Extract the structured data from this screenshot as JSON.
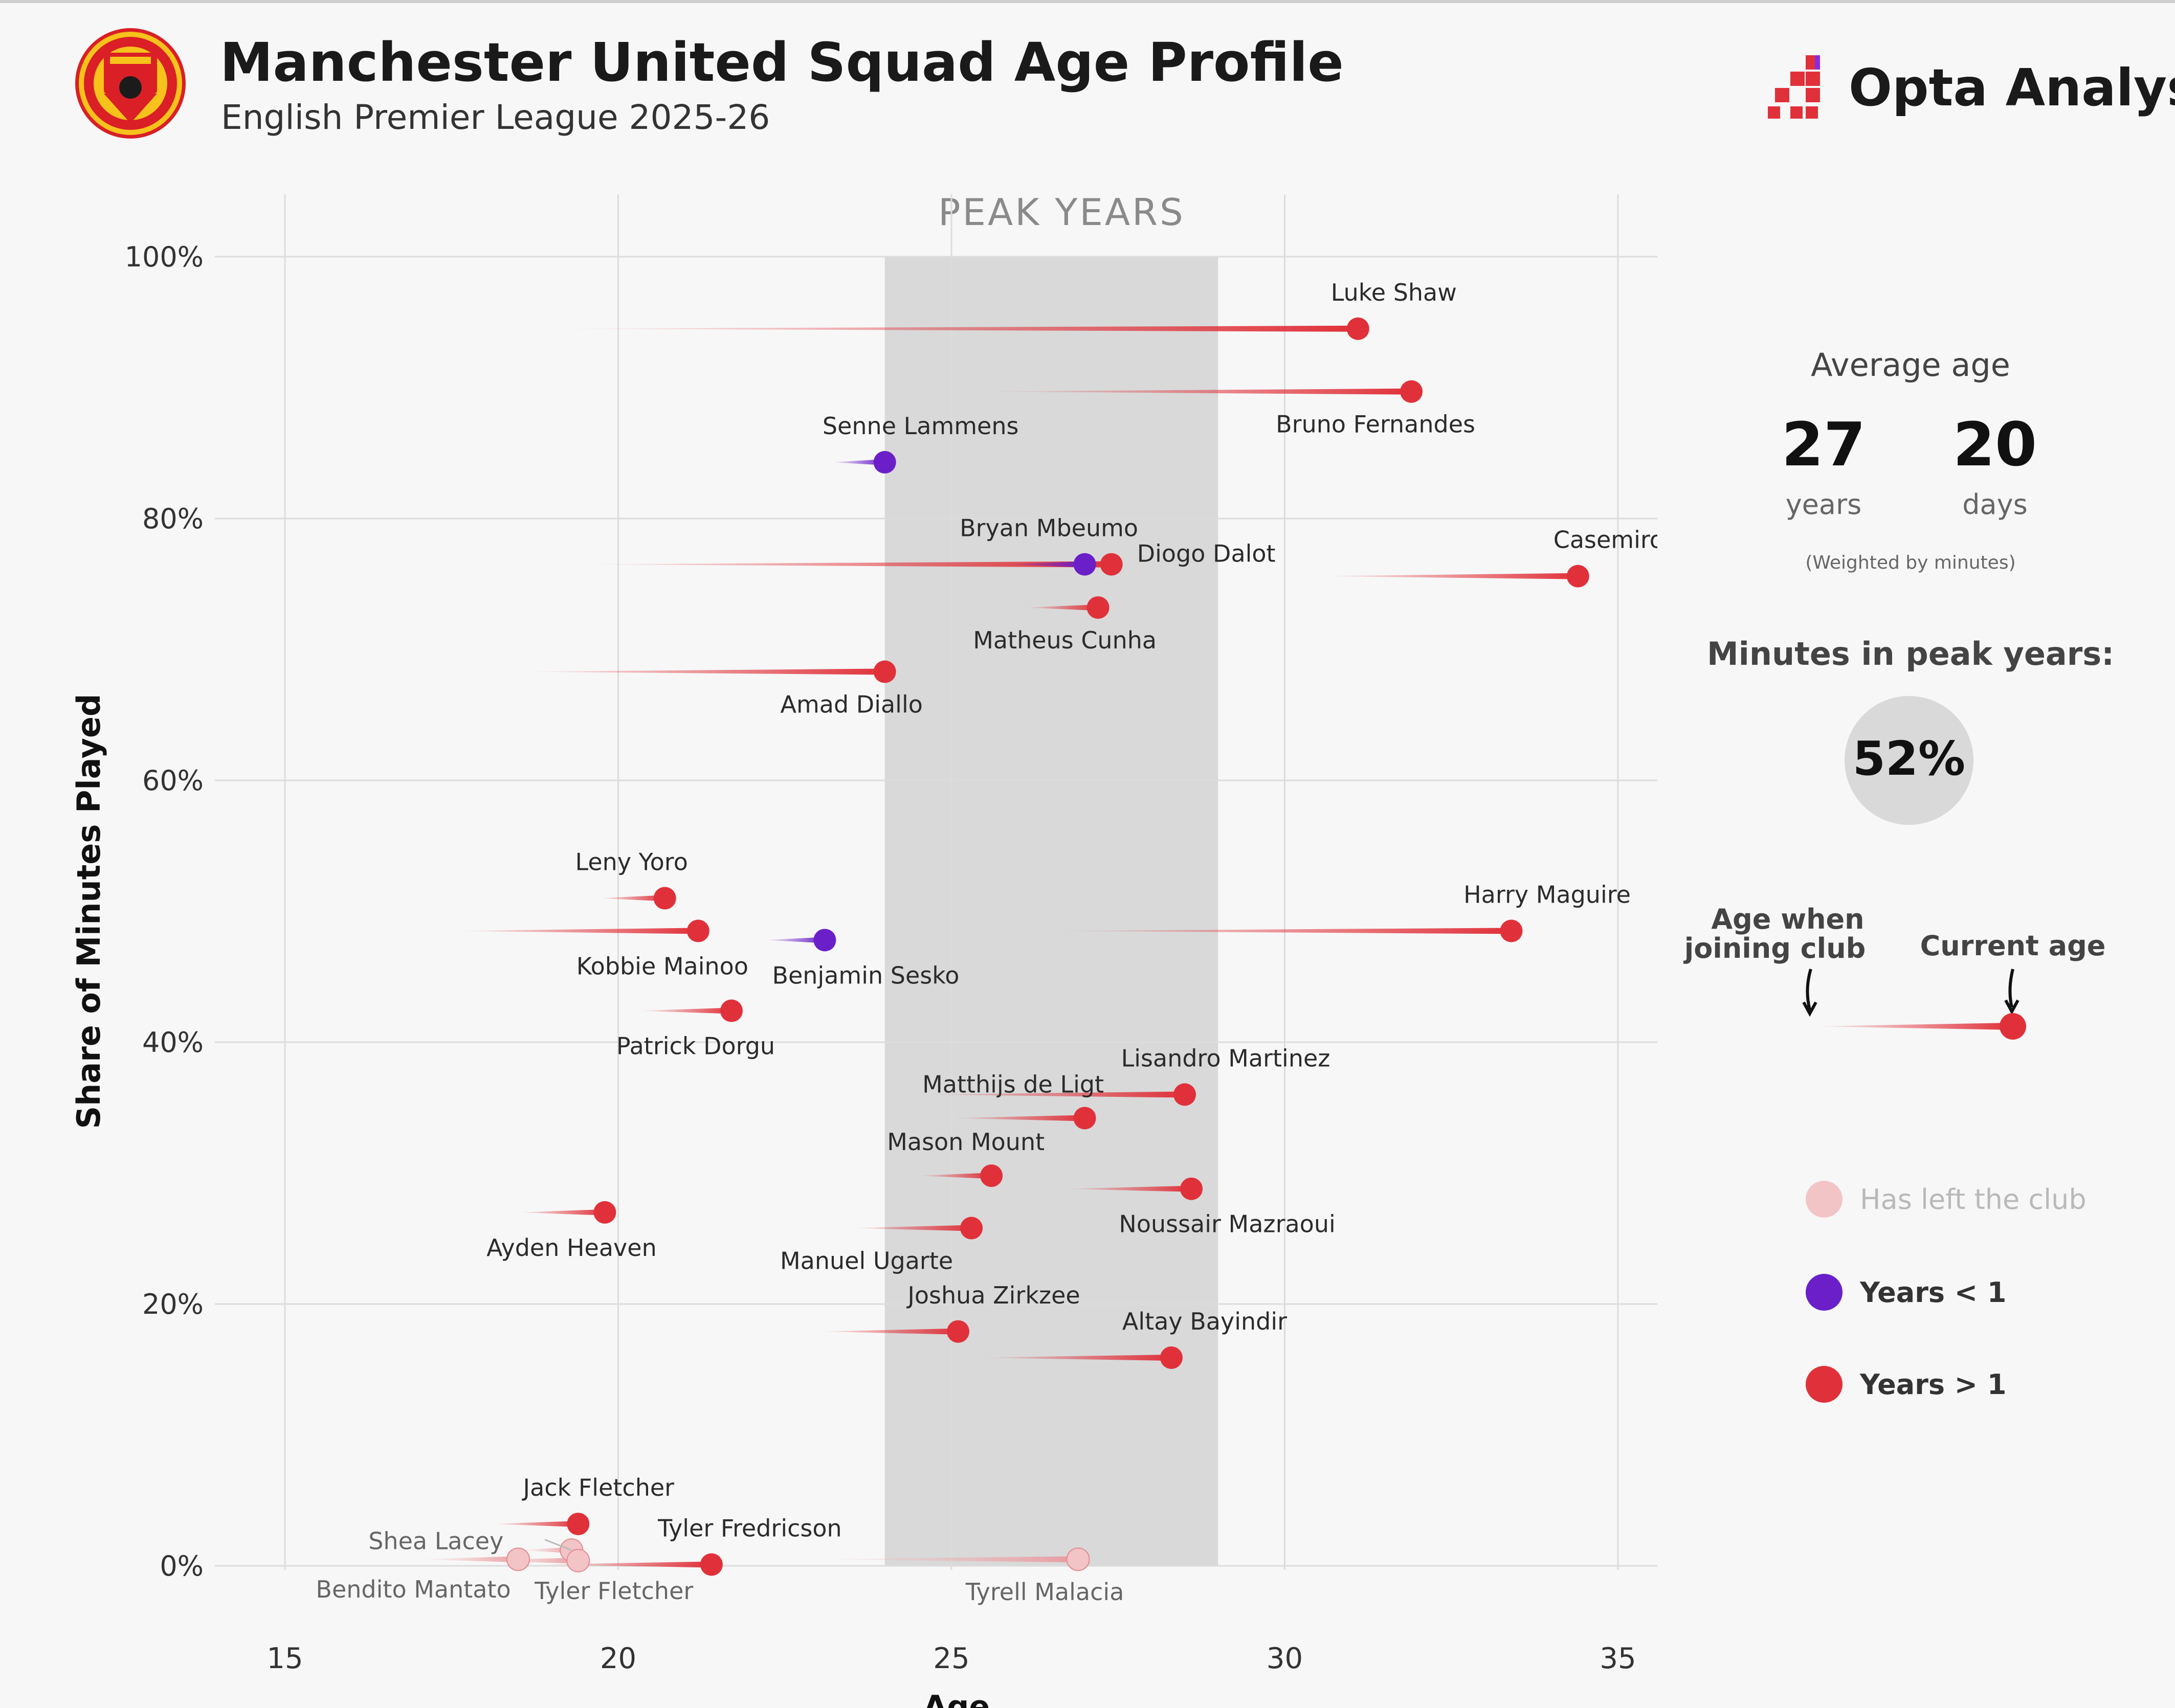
{
  "header": {
    "title": "Manchester United Squad Age Profile",
    "subtitle": "English Premier League 2025-26",
    "brand": "Opta Analyst",
    "club_crest": "manchester-united-crest"
  },
  "sidebar": {
    "average_age_title": "Average age",
    "years_value": "27",
    "years_label": "years",
    "days_value": "20",
    "days_label": "days",
    "weighted_note": "(Weighted by minutes)",
    "peak_title": "Minutes in peak years:",
    "peak_value": "52%",
    "key_joining": "Age when\njoining club",
    "key_current": "Current age",
    "legend": [
      {
        "label": "Has left the club",
        "color": "#f2c4c6"
      },
      {
        "label": "Years < 1",
        "color": "#6a1fc9"
      },
      {
        "label": "Years > 1",
        "color": "#e0313a"
      }
    ]
  },
  "colors": {
    "years_gt_1": "#e0313a",
    "years_lt_1": "#6a1fc9",
    "left_club": "#f2c4c6",
    "peak_band": "#d9d9d9",
    "peak_label": "#8a8a8a"
  },
  "chart_data": {
    "type": "scatter",
    "title": "Manchester United Squad Age Profile",
    "xlabel": "Age",
    "ylabel": "Share of Minutes Played",
    "xlim": [
      14,
      35.6
    ],
    "ylim": [
      -2,
      102
    ],
    "x_ticks": [
      15,
      20,
      25,
      30,
      35
    ],
    "x_tick_labels": [
      "15",
      "20",
      "25",
      "30",
      "35"
    ],
    "y_ticks": [
      0,
      20,
      40,
      60,
      80,
      100
    ],
    "y_tick_labels": [
      "0%",
      "20%",
      "40%",
      "60%",
      "80%",
      "100%"
    ],
    "grid": true,
    "peak_band": {
      "from": 24,
      "to": 29,
      "label": "PEAK YEARS"
    },
    "series_note": "each point: x = current age, join_age = age when joining club, y = share of minutes played (%)",
    "players": [
      {
        "name": "Luke Shaw",
        "join_age": 18.9,
        "age": 31.1,
        "share": 94.5,
        "group": "gt1"
      },
      {
        "name": "Bruno Fernandes",
        "join_age": 25.4,
        "age": 31.9,
        "share": 89.7,
        "group": "gt1"
      },
      {
        "name": "Senne Lammens",
        "join_age": 23.2,
        "age": 24.0,
        "share": 84.3,
        "group": "lt1"
      },
      {
        "name": "Diogo Dalot",
        "join_age": 19.3,
        "age": 27.4,
        "share": 76.5,
        "group": "gt1"
      },
      {
        "name": "Bryan Mbeumo",
        "join_age": 25.8,
        "age": 27.0,
        "share": 76.5,
        "group": "lt1"
      },
      {
        "name": "Casemiro",
        "join_age": 30.5,
        "age": 34.4,
        "share": 75.6,
        "group": "gt1"
      },
      {
        "name": "Matheus Cunha",
        "join_age": 26.1,
        "age": 27.2,
        "share": 73.2,
        "group": "gt1"
      },
      {
        "name": "Amad Diallo",
        "join_age": 18.5,
        "age": 24.0,
        "share": 68.3,
        "group": "gt1"
      },
      {
        "name": "Leny Yoro",
        "join_age": 19.7,
        "age": 20.7,
        "share": 51.0,
        "group": "gt1"
      },
      {
        "name": "Kobbie Mainoo",
        "join_age": 17.5,
        "age": 21.2,
        "share": 48.5,
        "group": "gt1"
      },
      {
        "name": "Benjamin Sesko",
        "join_age": 22.2,
        "age": 23.1,
        "share": 47.8,
        "group": "lt1"
      },
      {
        "name": "Harry Maguire",
        "join_age": 26.4,
        "age": 33.4,
        "share": 48.5,
        "group": "gt1"
      },
      {
        "name": "Patrick Dorgu",
        "join_age": 20.3,
        "age": 21.7,
        "share": 42.4,
        "group": "gt1"
      },
      {
        "name": "Lisandro Martinez",
        "join_age": 24.5,
        "age": 28.5,
        "share": 36.0,
        "group": "gt1"
      },
      {
        "name": "Matthijs de Ligt",
        "join_age": 25.0,
        "age": 27.0,
        "share": 34.2,
        "group": "gt1"
      },
      {
        "name": "Mason Mount",
        "join_age": 24.5,
        "age": 25.6,
        "share": 29.8,
        "group": "gt1"
      },
      {
        "name": "Noussair Mazraoui",
        "join_age": 26.7,
        "age": 28.6,
        "share": 28.8,
        "group": "gt1"
      },
      {
        "name": "Ayden Heaven",
        "join_age": 18.5,
        "age": 19.8,
        "share": 27.0,
        "group": "gt1"
      },
      {
        "name": "Manuel Ugarte",
        "join_age": 23.5,
        "age": 25.3,
        "share": 25.8,
        "group": "gt1"
      },
      {
        "name": "Joshua Zirkzee",
        "join_age": 23.0,
        "age": 25.1,
        "share": 17.9,
        "group": "gt1"
      },
      {
        "name": "Altay Bayindir",
        "join_age": 25.4,
        "age": 28.3,
        "share": 15.9,
        "group": "gt1"
      },
      {
        "name": "Jack Fletcher",
        "join_age": 18.1,
        "age": 19.4,
        "share": 3.2,
        "group": "gt1"
      },
      {
        "name": "Shea Lacey",
        "join_age": 18.5,
        "age": 19.3,
        "share": 1.2,
        "group": "left"
      },
      {
        "name": "Tyler Fredricson",
        "join_age": 18.8,
        "age": 21.4,
        "share": 0.1,
        "group": "gt1"
      },
      {
        "name": "Bendito Mantato",
        "join_age": 17.0,
        "age": 18.5,
        "share": 0.5,
        "group": "left"
      },
      {
        "name": "Tyler Fletcher",
        "join_age": 17.9,
        "age": 19.4,
        "share": 0.4,
        "group": "left"
      },
      {
        "name": "Tyrell Malacia",
        "join_age": 22.9,
        "age": 26.9,
        "share": 0.5,
        "group": "left"
      }
    ]
  }
}
